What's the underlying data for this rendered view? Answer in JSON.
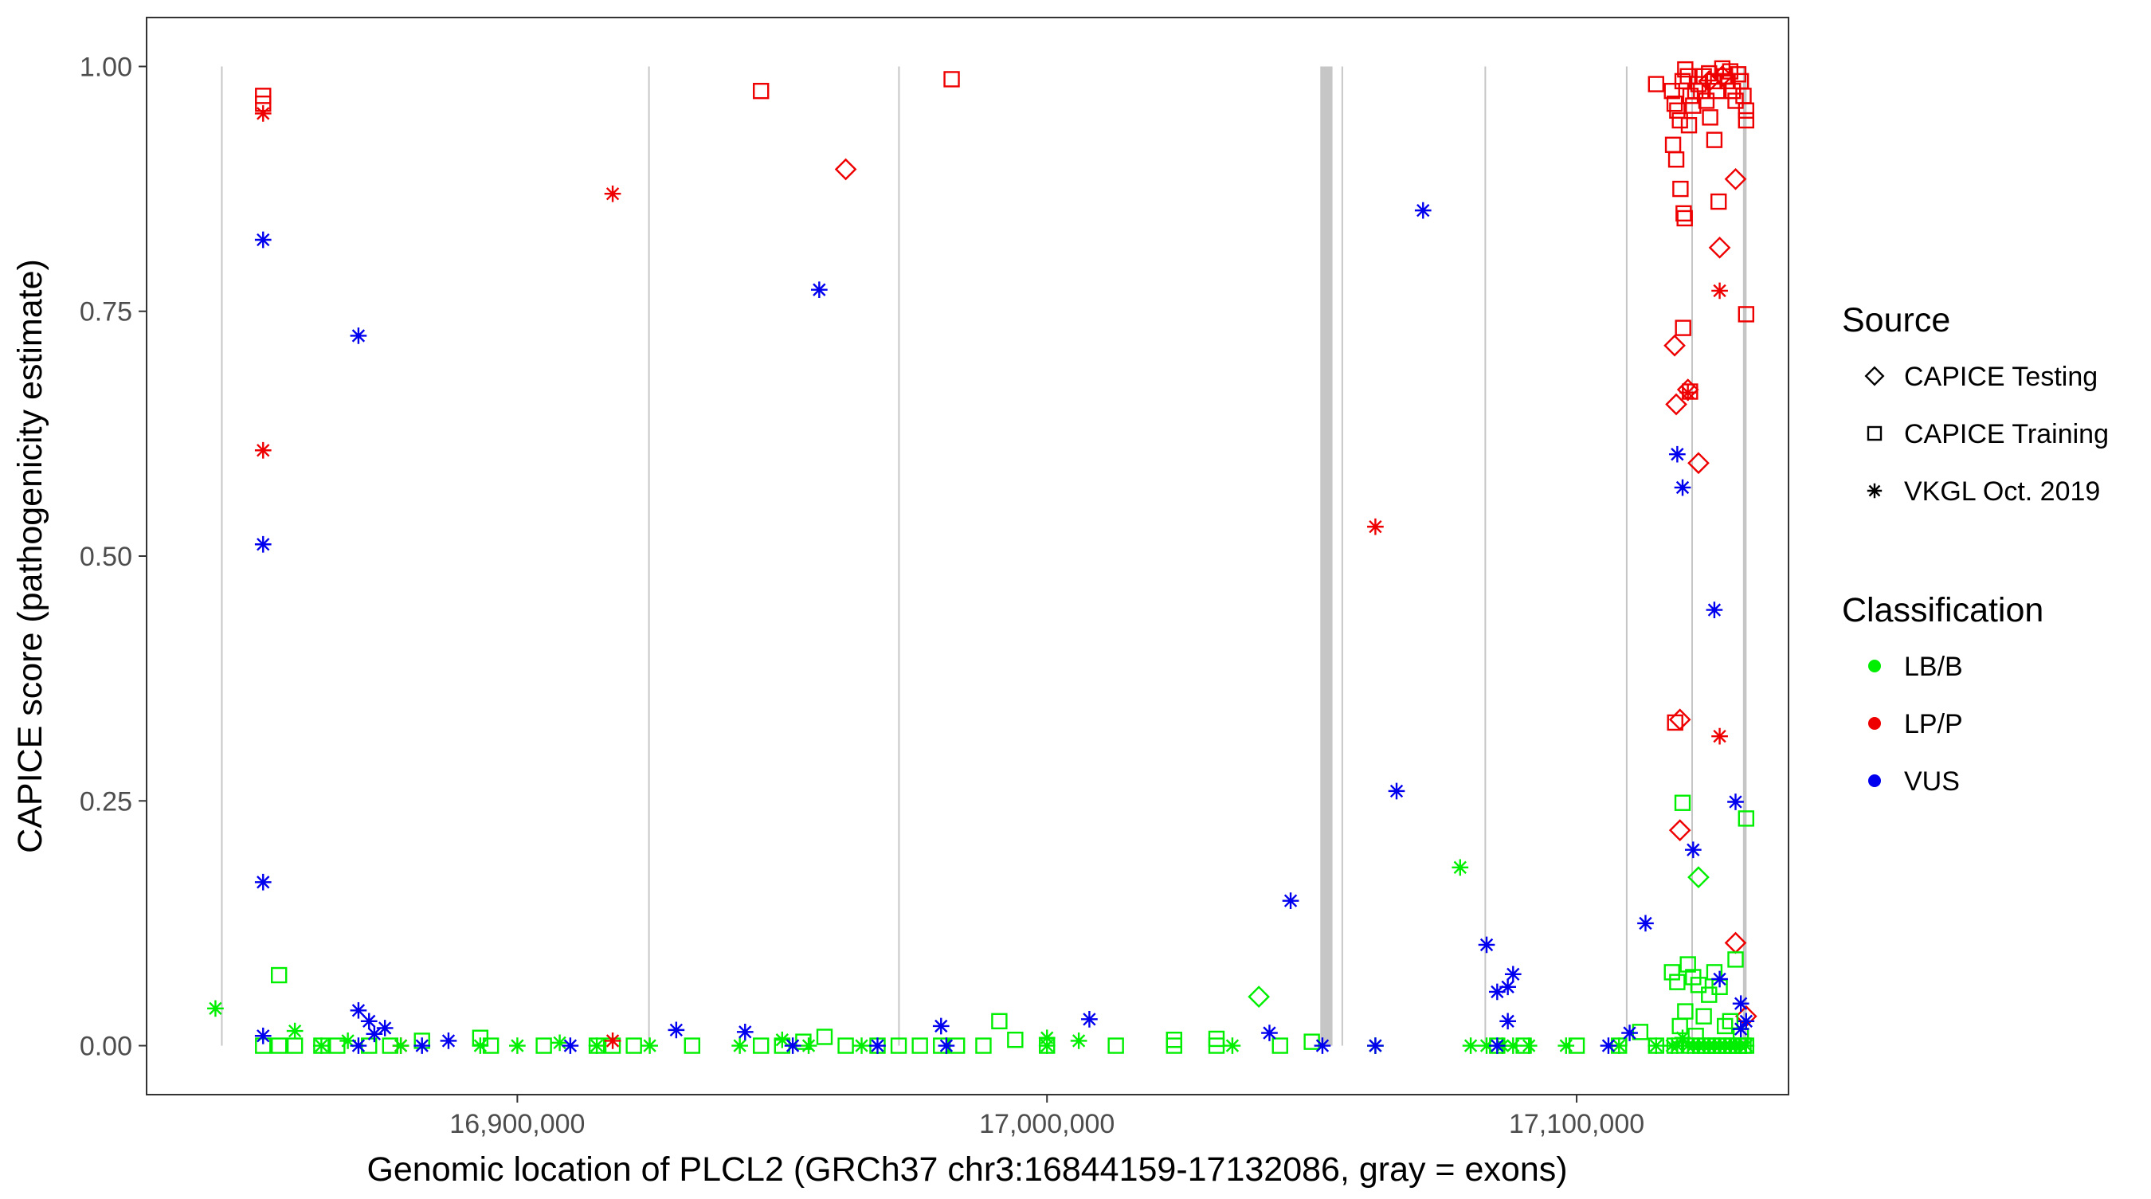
{
  "chart_data": {
    "type": "scatter",
    "xlabel": "Genomic location of PLCL2 (GRCh37 chr3:16844159-17132086, gray = exons)",
    "ylabel": "CAPICE score (pathogenicity estimate)",
    "xlim": [
      16830000,
      17140000
    ],
    "ylim": [
      -0.05,
      1.05
    ],
    "x_ticks": [
      16900000,
      17000000,
      17100000
    ],
    "x_tick_labels": [
      "16,900,000",
      "17,000,000",
      "17,100,000"
    ],
    "y_ticks": [
      0,
      0.25,
      0.5,
      0.75,
      1
    ],
    "y_tick_labels": [
      "0.00",
      "0.25",
      "0.50",
      "0.75",
      "1.00"
    ],
    "grid": false,
    "legend_placement": "right",
    "exons": [
      [
        16844159,
        16844259
      ],
      [
        16924800,
        16924900
      ],
      [
        16972000,
        16972100
      ],
      [
        17051600,
        17053900
      ],
      [
        17055700,
        17055800
      ],
      [
        17082700,
        17082800
      ],
      [
        17109400,
        17109500
      ],
      [
        17121700,
        17121900
      ],
      [
        17131400,
        17132086
      ]
    ],
    "legend_source": {
      "title": "Source",
      "entries": [
        {
          "label": "CAPICE Testing",
          "shape": "diamond"
        },
        {
          "label": "CAPICE Training",
          "shape": "square"
        },
        {
          "label": "VKGL Oct. 2019",
          "shape": "asterisk"
        }
      ]
    },
    "legend_classification": {
      "title": "Classification",
      "entries": [
        {
          "label": "LB/B",
          "color": "#00ee00"
        },
        {
          "label": "LP/P",
          "color": "#ee0000"
        },
        {
          "label": "VUS",
          "color": "#0000ee"
        }
      ]
    },
    "series": [
      {
        "shape": "diamond",
        "classification": "LP/P",
        "points": [
          [
            16962000,
            0.895
          ],
          [
            17118500,
            0.715
          ],
          [
            17118800,
            0.655
          ],
          [
            17121000,
            0.67
          ],
          [
            17123000,
            0.595
          ],
          [
            17127000,
            0.815
          ],
          [
            17130000,
            0.885
          ],
          [
            17130000,
            0.105
          ],
          [
            17119500,
            0.333
          ],
          [
            17119500,
            0.22
          ],
          [
            17132000,
            0.03
          ],
          [
            17127500,
            0.99
          ],
          [
            17125000,
            0.985
          ]
        ]
      },
      {
        "shape": "diamond",
        "classification": "LB/B",
        "points": [
          [
            17040000,
            0.05
          ],
          [
            17123000,
            0.172
          ]
        ]
      },
      {
        "shape": "square",
        "classification": "LP/P",
        "points": [
          [
            16852000,
            0.97
          ],
          [
            16852000,
            0.962
          ],
          [
            16946000,
            0.975
          ],
          [
            16982000,
            0.987
          ],
          [
            17115000,
            0.982
          ],
          [
            17118000,
            0.975
          ],
          [
            17118500,
            0.962
          ],
          [
            17119000,
            0.955
          ],
          [
            17119500,
            0.945
          ],
          [
            17120000,
            0.985
          ],
          [
            17120500,
            0.997
          ],
          [
            17121000,
            0.99
          ],
          [
            17121500,
            0.97
          ],
          [
            17122000,
            0.96
          ],
          [
            17123000,
            0.982
          ],
          [
            17123500,
            0.975
          ],
          [
            17124000,
            0.99
          ],
          [
            17124500,
            0.965
          ],
          [
            17125000,
            0.993
          ],
          [
            17126000,
            0.985
          ],
          [
            17126500,
            0.975
          ],
          [
            17127500,
            0.998
          ],
          [
            17128000,
            0.99
          ],
          [
            17128500,
            0.985
          ],
          [
            17129000,
            0.995
          ],
          [
            17129500,
            0.975
          ],
          [
            17130000,
            0.965
          ],
          [
            17130500,
            0.992
          ],
          [
            17131000,
            0.985
          ],
          [
            17131500,
            0.97
          ],
          [
            17132000,
            0.955
          ],
          [
            17132000,
            0.945
          ],
          [
            17118200,
            0.92
          ],
          [
            17118800,
            0.905
          ],
          [
            17119600,
            0.875
          ],
          [
            17120200,
            0.85
          ],
          [
            17120400,
            0.845
          ],
          [
            17121200,
            0.94
          ],
          [
            17122400,
            0.975
          ],
          [
            17125200,
            0.948
          ],
          [
            17126000,
            0.925
          ],
          [
            17126800,
            0.862
          ],
          [
            17132000,
            0.747
          ],
          [
            17120100,
            0.733
          ],
          [
            17121400,
            0.668
          ],
          [
            17118600,
            0.33
          ]
        ]
      },
      {
        "shape": "square",
        "classification": "LB/B",
        "points": [
          [
            16855000,
            0.072
          ],
          [
            16852000,
            0.0
          ],
          [
            16855000,
            0.0
          ],
          [
            16858000,
            0.0
          ],
          [
            16863000,
            0.0
          ],
          [
            16866000,
            0.0
          ],
          [
            16872000,
            0.0
          ],
          [
            16876000,
            0.0
          ],
          [
            16882000,
            0.005
          ],
          [
            16893000,
            0.008
          ],
          [
            16895000,
            0.0
          ],
          [
            16905000,
            0.0
          ],
          [
            16915000,
            0.0
          ],
          [
            16918000,
            0.0
          ],
          [
            16922000,
            0.0
          ],
          [
            16933000,
            0.0
          ],
          [
            16946000,
            0.0
          ],
          [
            16950000,
            0.0
          ],
          [
            16954000,
            0.004
          ],
          [
            16958000,
            0.009
          ],
          [
            16962000,
            0.0
          ],
          [
            16968000,
            0.0
          ],
          [
            16972000,
            0.0
          ],
          [
            16976000,
            0.0
          ],
          [
            16980000,
            0.0
          ],
          [
            16983000,
            0.0
          ],
          [
            16988000,
            0.0
          ],
          [
            16991000,
            0.025
          ],
          [
            16994000,
            0.006
          ],
          [
            17000000,
            0.0
          ],
          [
            17013000,
            0.0
          ],
          [
            17024000,
            0.006
          ],
          [
            17024000,
            0.0
          ],
          [
            17032000,
            0.007
          ],
          [
            17032000,
            0.0
          ],
          [
            17044000,
            0.0
          ],
          [
            17050000,
            0.004
          ],
          [
            17085000,
            0.0
          ],
          [
            17090000,
            0.0
          ],
          [
            17100000,
            0.0
          ],
          [
            17108000,
            0.0
          ],
          [
            17112000,
            0.014
          ],
          [
            17115000,
            0.0
          ],
          [
            17118000,
            0.075
          ],
          [
            17119000,
            0.065
          ],
          [
            17120000,
            0.248
          ],
          [
            17121000,
            0.083
          ],
          [
            17122000,
            0.07
          ],
          [
            17123000,
            0.062
          ],
          [
            17124000,
            0.03
          ],
          [
            17125000,
            0.052
          ],
          [
            17126000,
            0.075
          ],
          [
            17127000,
            0.06
          ],
          [
            17128000,
            0.02
          ],
          [
            17129000,
            0.025
          ],
          [
            17130000,
            0.088
          ],
          [
            17131000,
            0.01
          ],
          [
            17132000,
            0.232
          ],
          [
            17118500,
            0.0
          ],
          [
            17119500,
            0.02
          ],
          [
            17120500,
            0.035
          ],
          [
            17121500,
            0.0
          ],
          [
            17122500,
            0.01
          ],
          [
            17123500,
            0.0
          ],
          [
            17124500,
            0.0
          ],
          [
            17125500,
            0.0
          ],
          [
            17126500,
            0.0
          ],
          [
            17127500,
            0.0
          ],
          [
            17128500,
            0.0
          ],
          [
            17129500,
            0.0
          ],
          [
            17130500,
            0.0
          ],
          [
            17131500,
            0.0
          ],
          [
            17132000,
            0.0
          ]
        ]
      },
      {
        "shape": "asterisk",
        "classification": "LP/P",
        "points": [
          [
            16852000,
            0.952
          ],
          [
            16852000,
            0.608
          ],
          [
            16918000,
            0.87
          ],
          [
            16918000,
            0.005
          ],
          [
            16878000,
            0.0
          ],
          [
            17062000,
            0.53
          ],
          [
            17127000,
            0.771
          ],
          [
            17127000,
            0.316
          ],
          [
            17121000,
            0.667
          ]
        ]
      },
      {
        "shape": "asterisk",
        "classification": "LB/B",
        "points": [
          [
            16843000,
            0.038
          ],
          [
            16858000,
            0.015
          ],
          [
            16863000,
            0.0
          ],
          [
            16868000,
            0.005
          ],
          [
            16878000,
            0.0
          ],
          [
            16893000,
            0.0
          ],
          [
            16900000,
            0.0
          ],
          [
            16908000,
            0.003
          ],
          [
            16915000,
            0.0
          ],
          [
            16925000,
            0.0
          ],
          [
            16942000,
            0.0
          ],
          [
            16950000,
            0.006
          ],
          [
            16955000,
            0.0
          ],
          [
            16965000,
            0.0
          ],
          [
            17000000,
            0.008
          ],
          [
            17000000,
            0.0
          ],
          [
            17006000,
            0.005
          ],
          [
            17035000,
            0.0
          ],
          [
            17062000,
            0.0
          ],
          [
            17078000,
            0.182
          ],
          [
            17080000,
            0.0
          ],
          [
            17083000,
            0.0
          ],
          [
            17086000,
            0.0
          ],
          [
            17088000,
            0.0
          ],
          [
            17091000,
            0.0
          ],
          [
            17098000,
            0.0
          ],
          [
            17108000,
            0.0
          ],
          [
            17115000,
            0.0
          ],
          [
            17118000,
            0.0
          ],
          [
            17119000,
            0.0
          ],
          [
            17120000,
            0.008
          ],
          [
            17121000,
            0.0
          ],
          [
            17122000,
            0.0
          ],
          [
            17123000,
            0.0
          ],
          [
            17124000,
            0.0
          ],
          [
            17125000,
            0.0
          ],
          [
            17126000,
            0.0
          ],
          [
            17127000,
            0.0
          ],
          [
            17128000,
            0.0
          ],
          [
            17129000,
            0.0
          ],
          [
            17130000,
            0.0
          ],
          [
            17131000,
            0.0
          ],
          [
            17132000,
            0.0
          ]
        ]
      },
      {
        "shape": "asterisk",
        "classification": "VUS",
        "points": [
          [
            16852000,
            0.823
          ],
          [
            16852000,
            0.512
          ],
          [
            16852000,
            0.167
          ],
          [
            16852000,
            0.01
          ],
          [
            16870000,
            0.725
          ],
          [
            16870000,
            0.036
          ],
          [
            16872000,
            0.025
          ],
          [
            16873000,
            0.012
          ],
          [
            16875000,
            0.018
          ],
          [
            16870000,
            0.0
          ],
          [
            16882000,
            0.0
          ],
          [
            16887000,
            0.005
          ],
          [
            16910000,
            0.0
          ],
          [
            16930000,
            0.016
          ],
          [
            16943000,
            0.014
          ],
          [
            16952000,
            0.0
          ],
          [
            16957000,
            0.772
          ],
          [
            16968000,
            0.0
          ],
          [
            16980000,
            0.02
          ],
          [
            16981000,
            0.0
          ],
          [
            17008000,
            0.027
          ],
          [
            17042000,
            0.013
          ],
          [
            17046000,
            0.148
          ],
          [
            17052000,
            0.0
          ],
          [
            17062000,
            0.0
          ],
          [
            17066000,
            0.26
          ],
          [
            17071000,
            0.853
          ],
          [
            17083000,
            0.103
          ],
          [
            17085000,
            0.055
          ],
          [
            17087000,
            0.06
          ],
          [
            17088000,
            0.073
          ],
          [
            17087000,
            0.025
          ],
          [
            17085000,
            0.0
          ],
          [
            17106000,
            0.0
          ],
          [
            17110000,
            0.013
          ],
          [
            17113000,
            0.125
          ],
          [
            17119000,
            0.604
          ],
          [
            17120000,
            0.57
          ],
          [
            17122000,
            0.2
          ],
          [
            17126000,
            0.445
          ],
          [
            17127000,
            0.068
          ],
          [
            17130000,
            0.249
          ],
          [
            17131000,
            0.043
          ],
          [
            17132000,
            0.025
          ],
          [
            17131000,
            0.017
          ]
        ]
      }
    ]
  }
}
